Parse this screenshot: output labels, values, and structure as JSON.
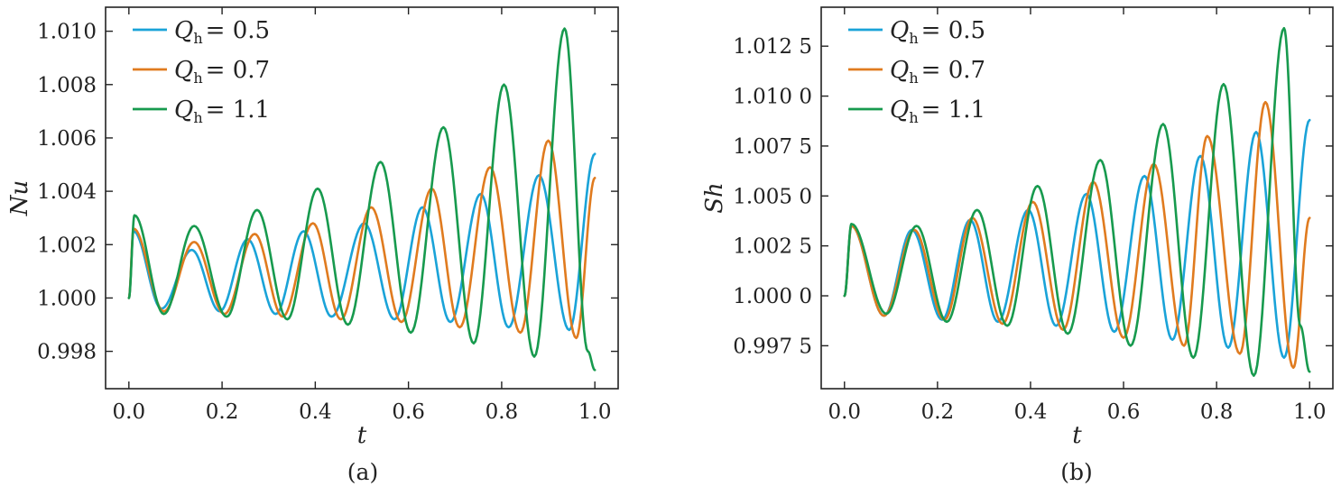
{
  "chart_data": [
    {
      "type": "line",
      "panel_label": "(a)",
      "xlabel": "t",
      "ylabel": "Nu",
      "xlim": [
        -0.05,
        1.05
      ],
      "ylim": [
        0.9966,
        1.0109
      ],
      "xticks": [
        0.0,
        0.2,
        0.4,
        0.6,
        0.8,
        1.0
      ],
      "xtick_labels": [
        "0.0",
        "0.2",
        "0.4",
        "0.6",
        "0.8",
        "1.0"
      ],
      "yticks": [
        0.998,
        1.0,
        1.002,
        1.004,
        1.006,
        1.008,
        1.01
      ],
      "ytick_labels": [
        "0.998",
        "1.000",
        "1.002",
        "1.004",
        "1.006",
        "1.008",
        "1.010"
      ],
      "legend_position": "top-left",
      "series": [
        {
          "name": "Q_h = 0.5",
          "legend_main": "Q",
          "legend_sub": "h",
          "legend_value": "= 0.5",
          "color": "#1AA3D8",
          "x": [
            0.0,
            0.01,
            0.07,
            0.135,
            0.195,
            0.255,
            0.315,
            0.375,
            0.435,
            0.505,
            0.57,
            0.63,
            0.69,
            0.755,
            0.815,
            0.88,
            0.945,
            1.0
          ],
          "y": [
            1.0,
            1.0025,
            0.9996,
            1.0018,
            0.9995,
            1.0022,
            0.9994,
            1.0025,
            0.9993,
            1.0028,
            0.9992,
            1.0034,
            0.9991,
            1.0039,
            0.9989,
            1.0046,
            0.9988,
            1.0054
          ]
        },
        {
          "name": "Q_h = 0.7",
          "legend_main": "Q",
          "legend_sub": "h",
          "legend_value": "= 0.7",
          "color": "#E07B1F",
          "x": [
            0.0,
            0.01,
            0.075,
            0.14,
            0.205,
            0.27,
            0.33,
            0.395,
            0.455,
            0.52,
            0.585,
            0.65,
            0.71,
            0.775,
            0.84,
            0.9,
            0.96,
            1.0
          ],
          "y": [
            1.0,
            1.0026,
            0.9995,
            1.0021,
            0.9994,
            1.0024,
            0.9993,
            1.0028,
            0.9992,
            1.0034,
            0.9991,
            1.0041,
            0.9989,
            1.0049,
            0.9987,
            1.0059,
            0.9985,
            1.0045
          ]
        },
        {
          "name": "Q_h = 1.1",
          "legend_main": "Q",
          "legend_sub": "h",
          "legend_value": "= 1.1",
          "color": "#179A4E",
          "x": [
            0.0,
            0.012,
            0.075,
            0.14,
            0.21,
            0.275,
            0.34,
            0.405,
            0.47,
            0.54,
            0.605,
            0.675,
            0.74,
            0.805,
            0.87,
            0.935,
            0.985,
            1.0
          ],
          "y": [
            1.0,
            1.0031,
            0.9994,
            1.0027,
            0.9993,
            1.0033,
            0.9992,
            1.0041,
            0.999,
            1.0051,
            0.9987,
            1.0064,
            0.9983,
            1.008,
            0.9978,
            1.0101,
            0.998,
            0.9973
          ]
        }
      ]
    },
    {
      "type": "line",
      "panel_label": "(b)",
      "xlabel": "t",
      "ylabel": "Sh",
      "xlim": [
        -0.05,
        1.05
      ],
      "ylim": [
        0.99535,
        1.01445
      ],
      "xticks": [
        0.0,
        0.2,
        0.4,
        0.6,
        0.8,
        1.0
      ],
      "xtick_labels": [
        "0.0",
        "0.2",
        "0.4",
        "0.6",
        "0.8",
        "1.0"
      ],
      "yticks": [
        0.9975,
        1.0,
        1.0025,
        1.005,
        1.0075,
        1.01,
        1.0125
      ],
      "ytick_labels": [
        "0.997 5",
        "1.000 0",
        "1.002 5",
        "1.005 0",
        "1.007 5",
        "1.010 0",
        "1.012 5"
      ],
      "legend_position": "top-left",
      "series": [
        {
          "name": "Q_h = 0.5",
          "legend_main": "Q",
          "legend_sub": "h",
          "legend_value": "= 0.5",
          "color": "#1AA3D8",
          "x": [
            0.0,
            0.015,
            0.085,
            0.145,
            0.21,
            0.27,
            0.33,
            0.395,
            0.455,
            0.52,
            0.58,
            0.645,
            0.705,
            0.765,
            0.825,
            0.885,
            0.945,
            1.0
          ],
          "y": [
            1.0,
            1.0035,
            0.999,
            1.0033,
            0.9988,
            1.0038,
            0.9987,
            1.0043,
            0.9985,
            1.0051,
            0.9982,
            1.006,
            0.9978,
            1.007,
            0.9974,
            1.0082,
            0.9969,
            1.0088
          ]
        },
        {
          "name": "Q_h = 0.7",
          "legend_main": "Q",
          "legend_sub": "h",
          "legend_value": "= 0.7",
          "color": "#E07B1F",
          "x": [
            0.0,
            0.015,
            0.085,
            0.15,
            0.215,
            0.275,
            0.34,
            0.405,
            0.47,
            0.535,
            0.6,
            0.665,
            0.73,
            0.78,
            0.85,
            0.905,
            0.965,
            1.0
          ],
          "y": [
            1.0,
            1.0035,
            0.999,
            1.0033,
            0.9988,
            1.0039,
            0.9986,
            1.0047,
            0.9983,
            1.0057,
            0.9979,
            1.0066,
            0.9975,
            1.008,
            0.9971,
            1.0097,
            0.9964,
            1.0039
          ]
        },
        {
          "name": "Q_h = 1.1",
          "legend_main": "Q",
          "legend_sub": "h",
          "legend_value": "= 1.1",
          "color": "#179A4E",
          "x": [
            0.0,
            0.015,
            0.09,
            0.155,
            0.22,
            0.285,
            0.35,
            0.415,
            0.48,
            0.55,
            0.615,
            0.685,
            0.75,
            0.815,
            0.88,
            0.945,
            0.98,
            1.0
          ],
          "y": [
            1.0,
            1.0036,
            0.9991,
            1.0035,
            0.9987,
            1.0043,
            0.9985,
            1.0055,
            0.9981,
            1.0068,
            0.9975,
            1.0086,
            0.9969,
            1.0106,
            0.996,
            1.0134,
            0.9985,
            0.9962
          ]
        }
      ]
    }
  ]
}
